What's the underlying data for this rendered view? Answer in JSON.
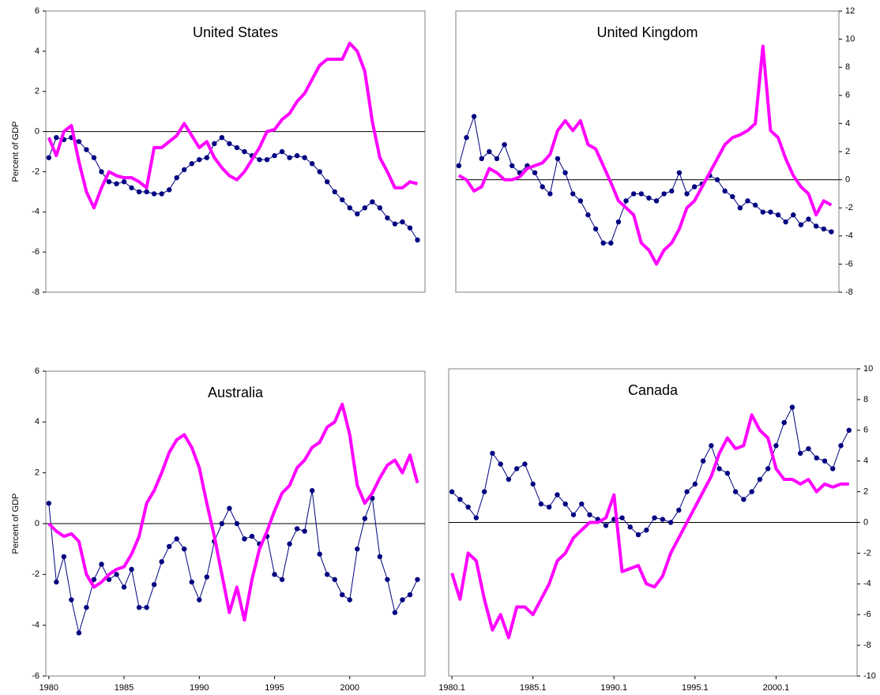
{
  "chart_data": [
    {
      "type": "line",
      "title": "United States",
      "y_label": "Percent of GDP",
      "yaxis_side": "left",
      "xlim": [
        1979.8,
        2005
      ],
      "ylim": [
        -8,
        6
      ],
      "yticks": [
        -8,
        -6,
        -4,
        -2,
        0,
        2,
        4,
        6
      ],
      "x": [
        1980,
        1980.5,
        1981,
        1981.5,
        1982,
        1982.5,
        1983,
        1983.5,
        1984,
        1984.5,
        1985,
        1985.5,
        1986,
        1986.5,
        1987,
        1987.5,
        1988,
        1988.5,
        1989,
        1989.5,
        1990,
        1990.5,
        1991,
        1991.5,
        1992,
        1992.5,
        1993,
        1993.5,
        1994,
        1994.5,
        1995,
        1995.5,
        1996,
        1996.5,
        1997,
        1997.5,
        1998,
        1998.5,
        1999,
        1999.5,
        2000,
        2000.5,
        2001,
        2001.5,
        2002,
        2002.5,
        2003,
        2003.5,
        2004,
        2004.5
      ],
      "series": [
        {
          "color": "#000080",
          "marker": true,
          "line_width": 1,
          "values": [
            -1.3,
            -0.3,
            -0.4,
            -0.3,
            -0.5,
            -0.9,
            -1.3,
            -2.0,
            -2.5,
            -2.6,
            -2.5,
            -2.8,
            -3.0,
            -3.0,
            -3.1,
            -3.1,
            -2.9,
            -2.3,
            -1.9,
            -1.6,
            -1.4,
            -1.3,
            -0.6,
            -0.3,
            -0.6,
            -0.8,
            -1.0,
            -1.2,
            -1.4,
            -1.4,
            -1.2,
            -1.0,
            -1.3,
            -1.2,
            -1.3,
            -1.6,
            -2.0,
            -2.5,
            -3.0,
            -3.4,
            -3.8,
            -4.1,
            -3.8,
            -3.5,
            -3.8,
            -4.3,
            -4.6,
            -4.5,
            -4.8,
            -5.4
          ]
        },
        {
          "color": "#ff00ff",
          "marker": false,
          "line_width": 4,
          "values": [
            -0.3,
            -1.2,
            0.0,
            0.3,
            -1.5,
            -3.0,
            -3.8,
            -2.8,
            -2.0,
            -2.2,
            -2.3,
            -2.3,
            -2.5,
            -2.8,
            -0.8,
            -0.8,
            -0.5,
            -0.2,
            0.4,
            -0.2,
            -0.8,
            -0.5,
            -1.3,
            -1.8,
            -2.2,
            -2.4,
            -2.0,
            -1.4,
            -0.8,
            0.0,
            0.1,
            0.6,
            0.9,
            1.5,
            1.9,
            2.6,
            3.3,
            3.6,
            3.6,
            3.6,
            4.4,
            4.0,
            3.0,
            0.5,
            -1.3,
            -2.0,
            -2.8,
            -2.8,
            -2.5,
            -2.6
          ]
        }
      ]
    },
    {
      "type": "line",
      "title": "United Kingdom",
      "yaxis_side": "right",
      "xlim": [
        1979.8,
        2005
      ],
      "ylim": [
        -8,
        12
      ],
      "yticks": [
        -8,
        -6,
        -4,
        -2,
        0,
        2,
        4,
        6,
        8,
        10,
        12
      ],
      "x": [
        1980,
        1980.5,
        1981,
        1981.5,
        1982,
        1982.5,
        1983,
        1983.5,
        1984,
        1984.5,
        1985,
        1985.5,
        1986,
        1986.5,
        1987,
        1987.5,
        1988,
        1988.5,
        1989,
        1989.5,
        1990,
        1990.5,
        1991,
        1991.5,
        1992,
        1992.5,
        1993,
        1993.5,
        1994,
        1994.5,
        1995,
        1995.5,
        1996,
        1996.5,
        1997,
        1997.5,
        1998,
        1998.5,
        1999,
        1999.5,
        2000,
        2000.5,
        2001,
        2001.5,
        2002,
        2002.5,
        2003,
        2003.5,
        2004,
        2004.5
      ],
      "series": [
        {
          "color": "#000080",
          "marker": true,
          "line_width": 1,
          "values": [
            1.0,
            3.0,
            4.5,
            1.5,
            2.0,
            1.5,
            2.5,
            1.0,
            0.5,
            1.0,
            0.5,
            -0.5,
            -1.0,
            1.5,
            0.5,
            -1.0,
            -1.5,
            -2.5,
            -3.5,
            -4.5,
            -4.5,
            -3.0,
            -1.5,
            -1.0,
            -1.0,
            -1.3,
            -1.5,
            -1.0,
            -0.8,
            0.5,
            -1.0,
            -0.5,
            -0.3,
            0.3,
            0.0,
            -0.8,
            -1.2,
            -2.0,
            -1.5,
            -1.8,
            -2.3,
            -2.3,
            -2.5,
            -3.0,
            -2.5,
            -3.2,
            -2.8,
            -3.3,
            -3.5,
            -3.7
          ]
        },
        {
          "color": "#ff00ff",
          "marker": false,
          "line_width": 4,
          "values": [
            0.3,
            0.0,
            -0.8,
            -0.5,
            0.8,
            0.5,
            0.0,
            0.0,
            0.2,
            0.8,
            1.0,
            1.2,
            1.8,
            3.5,
            4.2,
            3.5,
            4.2,
            2.5,
            2.2,
            1.0,
            -0.2,
            -1.5,
            -2.0,
            -2.5,
            -4.5,
            -5.0,
            -6.0,
            -5.0,
            -4.5,
            -3.5,
            -2.0,
            -1.5,
            -0.5,
            0.5,
            1.5,
            2.5,
            3.0,
            3.2,
            3.5,
            4.0,
            9.5,
            3.5,
            3.0,
            1.5,
            0.3,
            -0.5,
            -1.0,
            -2.5,
            -1.5,
            -1.8
          ]
        }
      ]
    },
    {
      "type": "line",
      "title": "Australia",
      "y_label": "Percent of GDP",
      "yaxis_side": "left",
      "xlim": [
        1979.8,
        2005
      ],
      "ylim": [
        -6,
        6
      ],
      "yticks": [
        -6,
        -4,
        -2,
        0,
        2,
        4,
        6
      ],
      "xticks": [
        1980,
        1985,
        1990,
        1995,
        2000
      ],
      "x": [
        1980,
        1980.5,
        1981,
        1981.5,
        1982,
        1982.5,
        1983,
        1983.5,
        1984,
        1984.5,
        1985,
        1985.5,
        1986,
        1986.5,
        1987,
        1987.5,
        1988,
        1988.5,
        1989,
        1989.5,
        1990,
        1990.5,
        1991,
        1991.5,
        1992,
        1992.5,
        1993,
        1993.5,
        1994,
        1994.5,
        1995,
        1995.5,
        1996,
        1996.5,
        1997,
        1997.5,
        1998,
        1998.5,
        1999,
        1999.5,
        2000,
        2000.5,
        2001,
        2001.5,
        2002,
        2002.5,
        2003,
        2003.5,
        2004,
        2004.5
      ],
      "series": [
        {
          "color": "#000080",
          "marker": true,
          "line_width": 1,
          "values": [
            0.8,
            -2.3,
            -1.3,
            -3.0,
            -4.3,
            -3.3,
            -2.2,
            -1.6,
            -2.2,
            -2.0,
            -2.5,
            -1.8,
            -3.3,
            -3.3,
            -2.4,
            -1.5,
            -0.9,
            -0.6,
            -1.0,
            -2.3,
            -3.0,
            -2.1,
            -0.7,
            0.0,
            0.6,
            0.0,
            -0.6,
            -0.5,
            -0.8,
            -0.5,
            -2.0,
            -2.2,
            -0.8,
            -0.2,
            -0.3,
            1.3,
            -1.2,
            -2.0,
            -2.2,
            -2.8,
            -3.0,
            -1.0,
            0.2,
            1.0,
            -1.3,
            -2.2,
            -3.5,
            -3.0,
            -2.8,
            -2.2
          ]
        },
        {
          "color": "#ff00ff",
          "marker": false,
          "line_width": 4,
          "values": [
            0.0,
            -0.3,
            -0.5,
            -0.4,
            -0.7,
            -2.0,
            -2.5,
            -2.3,
            -2.0,
            -1.8,
            -1.7,
            -1.2,
            -0.5,
            0.8,
            1.3,
            2.0,
            2.8,
            3.3,
            3.5,
            3.0,
            2.2,
            0.8,
            -0.5,
            -2.0,
            -3.5,
            -2.5,
            -3.8,
            -2.2,
            -1.0,
            -0.3,
            0.5,
            1.2,
            1.5,
            2.2,
            2.5,
            3.0,
            3.2,
            3.8,
            4.0,
            4.7,
            3.5,
            1.5,
            0.8,
            1.2,
            1.8,
            2.3,
            2.5,
            2.0,
            2.7,
            1.6
          ]
        }
      ]
    },
    {
      "type": "line",
      "title": "Canada",
      "yaxis_side": "right",
      "xlim": [
        1979.8,
        2005
      ],
      "ylim": [
        -10,
        10
      ],
      "yticks": [
        -10,
        -8,
        -6,
        -4,
        -2,
        0,
        2,
        4,
        6,
        8,
        10
      ],
      "xticks": [
        {
          "value": 1980,
          "label": "1980.1"
        },
        {
          "value": 1985,
          "label": "1985.1"
        },
        {
          "value": 1990,
          "label": "1990.1"
        },
        {
          "value": 1995,
          "label": "1995.1"
        },
        {
          "value": 2000,
          "label": "2000.1"
        }
      ],
      "x": [
        1980,
        1980.5,
        1981,
        1981.5,
        1982,
        1982.5,
        1983,
        1983.5,
        1984,
        1984.5,
        1985,
        1985.5,
        1986,
        1986.5,
        1987,
        1987.5,
        1988,
        1988.5,
        1989,
        1989.5,
        1990,
        1990.5,
        1991,
        1991.5,
        1992,
        1992.5,
        1993,
        1993.5,
        1994,
        1994.5,
        1995,
        1995.5,
        1996,
        1996.5,
        1997,
        1997.5,
        1998,
        1998.5,
        1999,
        1999.5,
        2000,
        2000.5,
        2001,
        2001.5,
        2002,
        2002.5,
        2003,
        2003.5,
        2004,
        2004.5
      ],
      "series": [
        {
          "color": "#000080",
          "marker": true,
          "line_width": 1,
          "values": [
            2.0,
            1.5,
            1.0,
            0.3,
            2.0,
            4.5,
            3.8,
            2.8,
            3.5,
            3.8,
            2.5,
            1.2,
            1.0,
            1.8,
            1.2,
            0.5,
            1.2,
            0.5,
            0.2,
            -0.2,
            0.2,
            0.3,
            -0.3,
            -0.8,
            -0.5,
            0.3,
            0.2,
            0.0,
            0.8,
            2.0,
            2.5,
            4.0,
            5.0,
            3.5,
            3.2,
            2.0,
            1.5,
            2.0,
            2.8,
            3.5,
            5.0,
            6.5,
            7.5,
            4.5,
            4.8,
            4.2,
            4.0,
            3.5,
            5.0,
            6.0
          ]
        },
        {
          "color": "#ff00ff",
          "marker": false,
          "line_width": 4,
          "values": [
            -3.3,
            -5.0,
            -2.0,
            -2.5,
            -5.0,
            -7.0,
            -6.0,
            -7.5,
            -5.5,
            -5.5,
            -6.0,
            -5.0,
            -4.0,
            -2.5,
            -2.0,
            -1.0,
            -0.5,
            0.0,
            0.0,
            0.3,
            1.8,
            -3.2,
            -3.0,
            -2.8,
            -4.0,
            -4.2,
            -3.5,
            -2.0,
            -1.0,
            0.0,
            1.0,
            2.0,
            3.0,
            4.5,
            5.5,
            4.8,
            5.0,
            7.0,
            6.0,
            5.5,
            3.5,
            2.8,
            2.8,
            2.5,
            2.8,
            2.0,
            2.5,
            2.3,
            2.5,
            2.5
          ]
        }
      ]
    }
  ]
}
